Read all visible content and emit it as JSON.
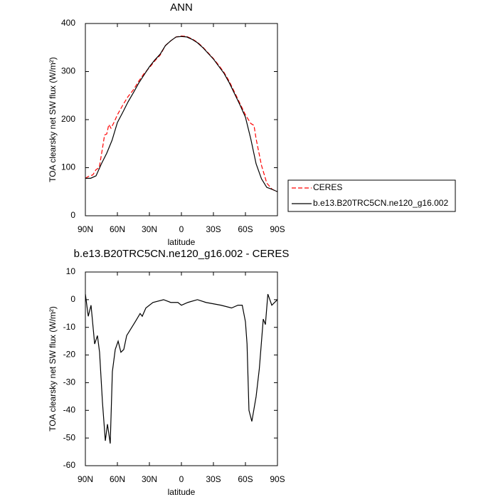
{
  "chart_data": [
    {
      "type": "line",
      "title": "ANN",
      "xlabel": "latitude",
      "ylabel": "TOA clearsky net SW flux (W/m²)",
      "xlim": [
        90,
        -90
      ],
      "ylim": [
        0,
        400
      ],
      "xticks": [
        {
          "value": 90,
          "label": "90N"
        },
        {
          "value": 60,
          "label": "60N"
        },
        {
          "value": 30,
          "label": "30N"
        },
        0,
        {
          "value": -30,
          "label": "30S"
        },
        {
          "value": -60,
          "label": "60S"
        },
        {
          "value": -90,
          "label": "90S"
        }
      ],
      "yticks": [
        0,
        100,
        200,
        300,
        400
      ],
      "legend": "right",
      "series": [
        {
          "name": "CERES",
          "color": "#ff0000",
          "dashed": true,
          "x": [
            90,
            87,
            83,
            80,
            77,
            74,
            72,
            70,
            68,
            66,
            63,
            60,
            55,
            50,
            45,
            40,
            35,
            30,
            25,
            20,
            15,
            10,
            5,
            0,
            -5,
            -10,
            -15,
            -20,
            -25,
            -30,
            -35,
            -40,
            -45,
            -50,
            -55,
            -60,
            -65,
            -68,
            -70,
            -75,
            -80,
            -85,
            -90
          ],
          "values": [
            78,
            82,
            85,
            96,
            100,
            140,
            168,
            170,
            190,
            182,
            195,
            210,
            230,
            248,
            262,
            280,
            296,
            308,
            322,
            334,
            354,
            364,
            372,
            374,
            373,
            368,
            361,
            351,
            339,
            327,
            313,
            298,
            279,
            256,
            233,
            210,
            192,
            188,
            160,
            105,
            68,
            55,
            50
          ]
        },
        {
          "name": "b.e13.B20TRC5CN.ne120_g16.002",
          "color": "#000000",
          "dashed": false,
          "x": [
            90,
            85,
            80,
            75,
            70,
            65,
            60,
            55,
            50,
            45,
            40,
            35,
            30,
            25,
            20,
            15,
            10,
            5,
            0,
            -5,
            -10,
            -15,
            -20,
            -25,
            -30,
            -35,
            -40,
            -45,
            -50,
            -55,
            -60,
            -65,
            -70,
            -75,
            -80,
            -85,
            -90
          ],
          "values": [
            78,
            78,
            83,
            108,
            130,
            157,
            194,
            215,
            237,
            256,
            276,
            293,
            310,
            324,
            336,
            354,
            364,
            372,
            373,
            372,
            367,
            360,
            350,
            338,
            326,
            311,
            296,
            276,
            253,
            230,
            205,
            160,
            108,
            77,
            59,
            55,
            50
          ]
        }
      ]
    },
    {
      "type": "line",
      "title": "b.e13.B20TRC5CN.ne120_g16.002 - CERES",
      "xlabel": "latitude",
      "ylabel": "TOA clearsky net SW flux (W/m²)",
      "xlim": [
        90,
        -90
      ],
      "ylim": [
        -60,
        10
      ],
      "xticks": [
        {
          "value": 90,
          "label": "90N"
        },
        {
          "value": 60,
          "label": "60N"
        },
        {
          "value": 30,
          "label": "30N"
        },
        0,
        {
          "value": -30,
          "label": "30S"
        },
        {
          "value": -60,
          "label": "60S"
        },
        {
          "value": -90,
          "label": "90S"
        }
      ],
      "yticks": [
        10,
        0,
        -10,
        -20,
        -30,
        -40,
        -50,
        -60
      ],
      "series": [
        {
          "color": "#000000",
          "dashed": false,
          "x": [
            90,
            87.3,
            84.7,
            81.3,
            78.7,
            76.7,
            74,
            71.3,
            69.3,
            66.7,
            64.7,
            62,
            59.3,
            56.7,
            54,
            51.3,
            43.3,
            38.7,
            36.7,
            33.3,
            26.7,
            16.7,
            10,
            3.3,
            0,
            -6,
            -15,
            -23,
            -37,
            -47,
            -53,
            -57,
            -60,
            -61.5,
            -63.3,
            -66,
            -70,
            -73,
            -76.7,
            -78.7,
            -81,
            -84.7,
            -90
          ],
          "values": [
            2,
            -6,
            -2,
            -16,
            -13,
            -19,
            -37,
            -51,
            -45,
            -52,
            -26,
            -18,
            -15,
            -19,
            -18,
            -13,
            -8,
            -5,
            -6,
            -3,
            -1,
            0,
            -1,
            -1,
            -2,
            -1,
            0,
            -1,
            -2,
            -3,
            -2,
            -2,
            -8,
            -16,
            -40,
            -44,
            -35,
            -25,
            -7,
            -9,
            2,
            -2,
            0
          ]
        }
      ]
    }
  ]
}
